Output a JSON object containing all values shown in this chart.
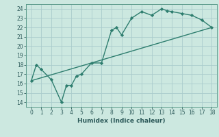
{
  "line1_x": [
    0,
    0.5,
    1,
    2,
    3,
    3.5,
    4,
    4.5,
    5,
    6,
    7,
    8,
    8.5,
    9,
    10,
    11,
    12,
    13,
    13.5,
    14,
    15,
    16,
    17,
    18
  ],
  "line1_y": [
    16.3,
    18.0,
    17.5,
    16.4,
    14.0,
    15.8,
    15.8,
    16.8,
    17.0,
    18.2,
    18.2,
    21.7,
    22.0,
    21.2,
    23.0,
    23.7,
    23.3,
    24.0,
    23.8,
    23.7,
    23.5,
    23.3,
    22.8,
    22.0
  ],
  "line2_x": [
    0,
    18
  ],
  "line2_y": [
    16.3,
    22.0
  ],
  "line_color": "#2d7d6e",
  "bg_color": "#cce8e0",
  "grid_color": "#aacccc",
  "xlabel": "Humidex (Indice chaleur)",
  "xlim": [
    -0.5,
    18.5
  ],
  "ylim": [
    13.5,
    24.5
  ],
  "xticks": [
    0,
    1,
    2,
    3,
    4,
    5,
    6,
    7,
    8,
    9,
    10,
    11,
    12,
    13,
    14,
    15,
    16,
    17,
    18
  ],
  "yticks": [
    14,
    15,
    16,
    17,
    18,
    19,
    20,
    21,
    22,
    23,
    24
  ],
  "marker": "D",
  "markersize": 2.2,
  "linewidth": 1.0,
  "tick_fontsize": 5.5,
  "xlabel_fontsize": 6.5
}
